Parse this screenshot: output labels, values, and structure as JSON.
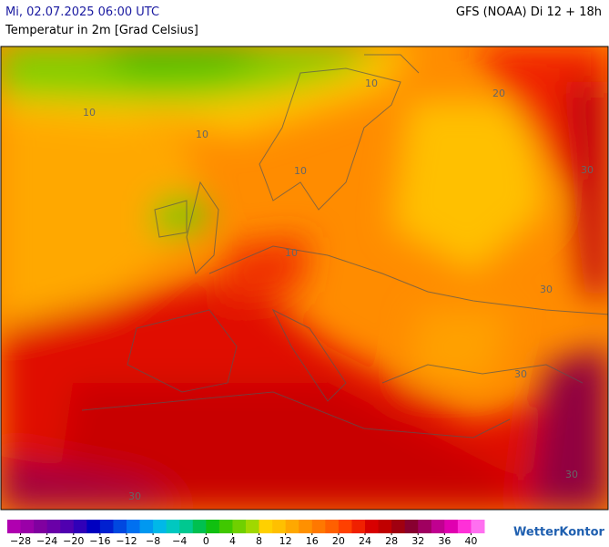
{
  "header": {
    "datetime": "Mi, 02.07.2025 06:00 UTC",
    "model": "GFS (NOAA) Di 12 + 18h",
    "subtitle": "Temperatur in 2m [Grad Celsius]"
  },
  "map": {
    "contour_labels": [
      "10",
      "10",
      "10",
      "10",
      "10",
      "20",
      "30",
      "30",
      "30",
      "30",
      "30"
    ]
  },
  "legend": {
    "range": [
      -30,
      42
    ],
    "colors": [
      "#b000b0",
      "#9a00a8",
      "#8000a0",
      "#6a00a8",
      "#5000b0",
      "#3000b8",
      "#0000c0",
      "#0020d0",
      "#0048e0",
      "#0070f0",
      "#0098f0",
      "#00b8e8",
      "#00c8c0",
      "#00c890",
      "#00c050",
      "#10c010",
      "#40c800",
      "#70d000",
      "#a0d800",
      "#ffd000",
      "#ffc000",
      "#ffa800",
      "#ff9000",
      "#ff7800",
      "#ff6000",
      "#ff4000",
      "#f02000",
      "#d80000",
      "#c00000",
      "#a00010",
      "#880030",
      "#a00060",
      "#c00090",
      "#e000b0",
      "#ff30d8",
      "#ff70f0"
    ],
    "ticks": [
      {
        "value": -28,
        "label": "−28"
      },
      {
        "value": -24,
        "label": "−24"
      },
      {
        "value": -20,
        "label": "−20"
      },
      {
        "value": -16,
        "label": "−16"
      },
      {
        "value": -12,
        "label": "−12"
      },
      {
        "value": -8,
        "label": "−8"
      },
      {
        "value": -4,
        "label": "−4"
      },
      0,
      4,
      8,
      12,
      16,
      20,
      24,
      28,
      32,
      36,
      40
    ]
  },
  "brand": "WetterKontor"
}
